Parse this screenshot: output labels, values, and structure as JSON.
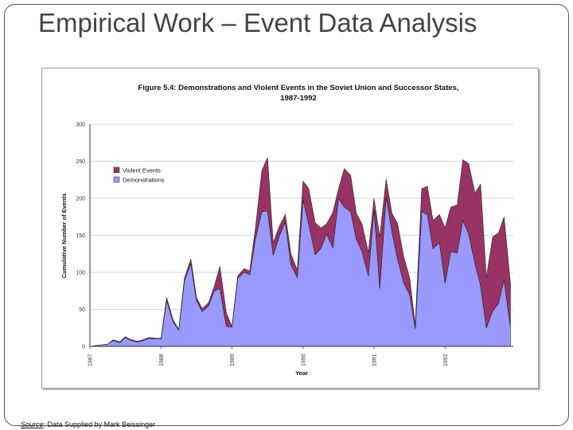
{
  "slide": {
    "title": "Empirical Work – Event Data Analysis",
    "source_label": "Source",
    "source_text": ": Data Supplied by Mark Beissinger"
  },
  "chart_data": {
    "type": "area",
    "title": "Figure 5.4: Demonstrations and Violent Events in the Soviet Union and Successor States, 1987-1992",
    "xlabel": "Year",
    "ylabel": "Cumulative Number of Events",
    "ylim": [
      0,
      300
    ],
    "yticks": [
      0,
      50,
      100,
      150,
      200,
      250,
      300
    ],
    "xlim": [
      1987.0,
      1992.96
    ],
    "xticks": [
      1987,
      1988,
      1989,
      1990,
      1991,
      1992
    ],
    "stacked": true,
    "legend": "top-left",
    "x": [
      1987.0,
      1987.08,
      1987.17,
      1987.25,
      1987.33,
      1987.42,
      1987.5,
      1987.58,
      1987.67,
      1987.75,
      1987.83,
      1987.92,
      1988.0,
      1988.08,
      1988.17,
      1988.25,
      1988.33,
      1988.42,
      1988.5,
      1988.58,
      1988.67,
      1988.75,
      1988.83,
      1988.92,
      1989.0,
      1989.08,
      1989.17,
      1989.25,
      1989.33,
      1989.42,
      1989.5,
      1989.58,
      1989.67,
      1989.75,
      1989.83,
      1989.92,
      1990.0,
      1990.08,
      1990.17,
      1990.25,
      1990.33,
      1990.42,
      1990.5,
      1990.58,
      1990.67,
      1990.75,
      1990.83,
      1990.92,
      1991.0,
      1991.08,
      1991.17,
      1991.25,
      1991.33,
      1991.42,
      1991.5,
      1991.58,
      1991.67,
      1991.75,
      1991.83,
      1991.92,
      1992.0,
      1992.08,
      1992.17,
      1992.25,
      1992.33,
      1992.42,
      1992.5,
      1992.58,
      1992.67,
      1992.75,
      1992.83,
      1992.92
    ],
    "series": [
      {
        "name": "Demonstrations",
        "color": "#9999ff",
        "values": [
          0,
          1,
          2,
          3,
          8,
          5,
          12,
          8,
          6,
          8,
          11,
          10,
          10,
          62,
          33,
          22,
          88,
          112,
          62,
          47,
          55,
          75,
          78,
          27,
          26,
          92,
          100,
          97,
          145,
          182,
          183,
          123,
          150,
          168,
          110,
          93,
          198,
          165,
          124,
          132,
          152,
          133,
          200,
          188,
          182,
          145,
          128,
          95,
          185,
          78,
          202,
          155,
          118,
          85,
          70,
          24,
          182,
          178,
          132,
          140,
          85,
          128,
          126,
          170,
          152,
          112,
          82,
          25,
          48,
          58,
          90,
          25
        ]
      },
      {
        "name": "Violent Events",
        "color": "#993366",
        "values": [
          0,
          0,
          0,
          0,
          1,
          1,
          1,
          1,
          1,
          1,
          1,
          1,
          1,
          4,
          3,
          1,
          4,
          6,
          4,
          4,
          4,
          6,
          30,
          18,
          1,
          3,
          5,
          5,
          15,
          55,
          72,
          17,
          13,
          10,
          15,
          10,
          25,
          48,
          43,
          28,
          13,
          48,
          13,
          52,
          49,
          35,
          37,
          32,
          15,
          70,
          24,
          25,
          48,
          35,
          23,
          5,
          31,
          38,
          38,
          38,
          75,
          60,
          65,
          82,
          95,
          95,
          137,
          68,
          100,
          95,
          85,
          60
        ]
      }
    ]
  }
}
